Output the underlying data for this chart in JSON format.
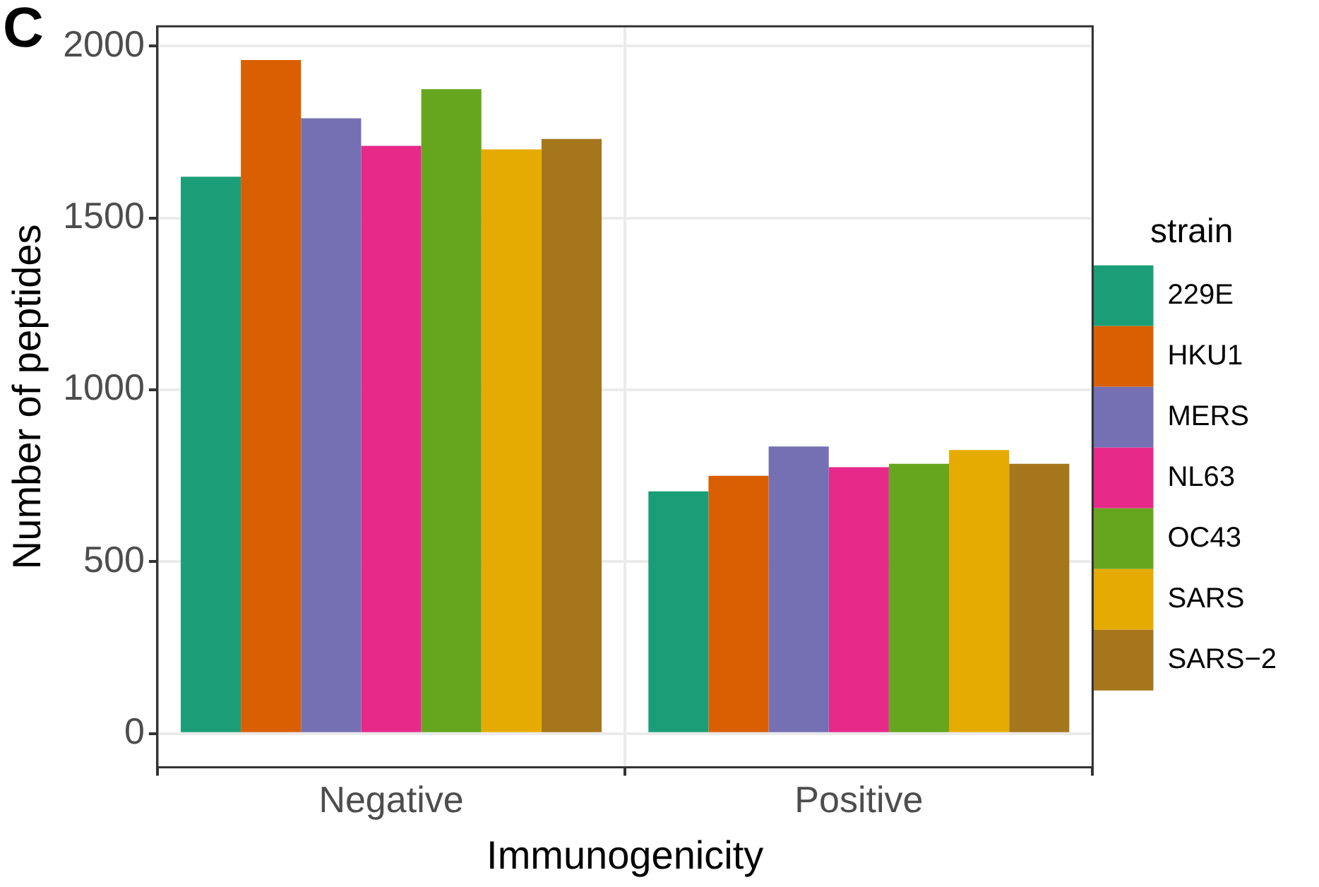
{
  "chart_data": {
    "type": "bar",
    "xlabel": "Immunogenicity",
    "ylabel": "Number of peptides",
    "legend_title": "strain",
    "categories": [
      "Negative",
      "Positive"
    ],
    "series": [
      {
        "name": "229E",
        "color": "#1b9e77",
        "values": [
          1620,
          705
        ]
      },
      {
        "name": "HKU1",
        "color": "#d95f02",
        "values": [
          1960,
          750
        ]
      },
      {
        "name": "MERS",
        "color": "#7570b3",
        "values": [
          1790,
          835
        ]
      },
      {
        "name": "NL63",
        "color": "#e7298a",
        "values": [
          1710,
          775
        ]
      },
      {
        "name": "OC43",
        "color": "#66a61e",
        "values": [
          1875,
          785
        ]
      },
      {
        "name": "SARS",
        "color": "#e6ab02",
        "values": [
          1700,
          825
        ]
      },
      {
        "name": "SARS−2",
        "color": "#a6761d",
        "values": [
          1730,
          785
        ]
      }
    ],
    "ylim": [
      -98,
      2058
    ],
    "yticks": [
      0,
      500,
      1000,
      1500,
      2000
    ],
    "grid": true,
    "legend": "right",
    "annotations": [
      "C"
    ]
  }
}
